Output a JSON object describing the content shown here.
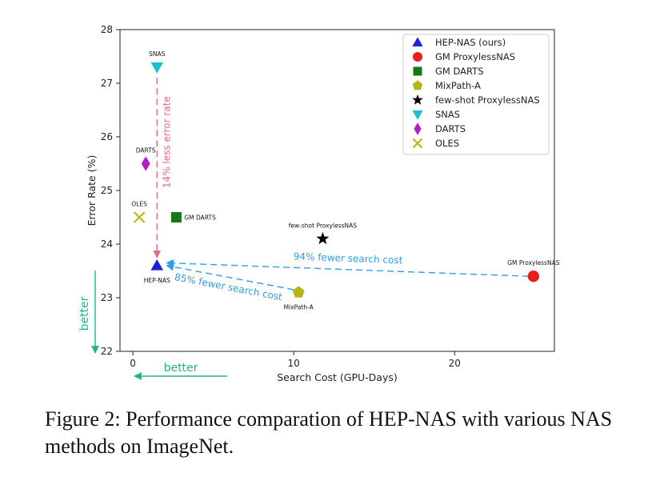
{
  "chart_data": {
    "type": "scatter",
    "xlabel": "Search Cost (GPU-Days)",
    "ylabel": "Error Rate (%)",
    "xlim": [
      -0.8,
      26.2
    ],
    "ylim": [
      22,
      28
    ],
    "x_ticks": [
      0,
      10,
      20
    ],
    "y_ticks": [
      22,
      23,
      24,
      25,
      26,
      27,
      28
    ],
    "grid": false,
    "legend_position": "top-right",
    "series": [
      {
        "name": "HEP-NAS (ours)",
        "label": "HEP-NAS",
        "marker": "triangle-up",
        "color": "#1f1fd6",
        "x": 1.5,
        "y": 23.6,
        "label_pos": "below"
      },
      {
        "name": "GM ProxylessNAS",
        "label": "GM ProxylessNAS",
        "marker": "circle",
        "color": "#e8201c",
        "x": 24.9,
        "y": 23.4,
        "label_pos": "above"
      },
      {
        "name": "GM DARTS",
        "label": "GM DARTS",
        "marker": "square",
        "color": "#157a15",
        "x": 2.7,
        "y": 24.5,
        "label_pos": "right"
      },
      {
        "name": "MixPath-A",
        "label": "MixPath-A",
        "marker": "pentagon",
        "color": "#b5b51a",
        "x": 10.3,
        "y": 23.1,
        "label_pos": "below"
      },
      {
        "name": "few-shot ProxylessNAS",
        "label": "few-shot ProxylessNAS",
        "marker": "star",
        "color": "#000000",
        "x": 11.8,
        "y": 24.1,
        "label_pos": "above"
      },
      {
        "name": "SNAS",
        "label": "SNAS",
        "marker": "triangle-down",
        "color": "#1fbfcf",
        "x": 1.5,
        "y": 27.3,
        "label_pos": "above"
      },
      {
        "name": "DARTS",
        "label": "DARTS",
        "marker": "diamond",
        "color": "#b31fbf",
        "x": 0.8,
        "y": 25.5,
        "label_pos": "above"
      },
      {
        "name": "OLES",
        "label": "OLES",
        "marker": "x",
        "color": "#b5b51a",
        "x": 0.4,
        "y": 24.5,
        "label_pos": "above"
      }
    ],
    "annotations": [
      {
        "text": "14% less error rate",
        "from": [
          1.5,
          27.1
        ],
        "to": [
          1.5,
          23.75
        ],
        "color": "#ea6a7e",
        "orientation": "vertical"
      },
      {
        "text": "94% fewer search cost",
        "from": [
          24.6,
          23.4
        ],
        "to": [
          2.1,
          23.65
        ],
        "color": "#2f9ee6"
      },
      {
        "text": "85% fewer search cost",
        "from": [
          10.0,
          23.15
        ],
        "to": [
          2.1,
          23.6
        ],
        "color": "#2f9ee6"
      }
    ],
    "better_indicators": {
      "text": "better",
      "color": "#1fb58a"
    }
  },
  "caption": "Figure 2: Performance comparation of HEP-NAS with various NAS methods on ImageNet."
}
